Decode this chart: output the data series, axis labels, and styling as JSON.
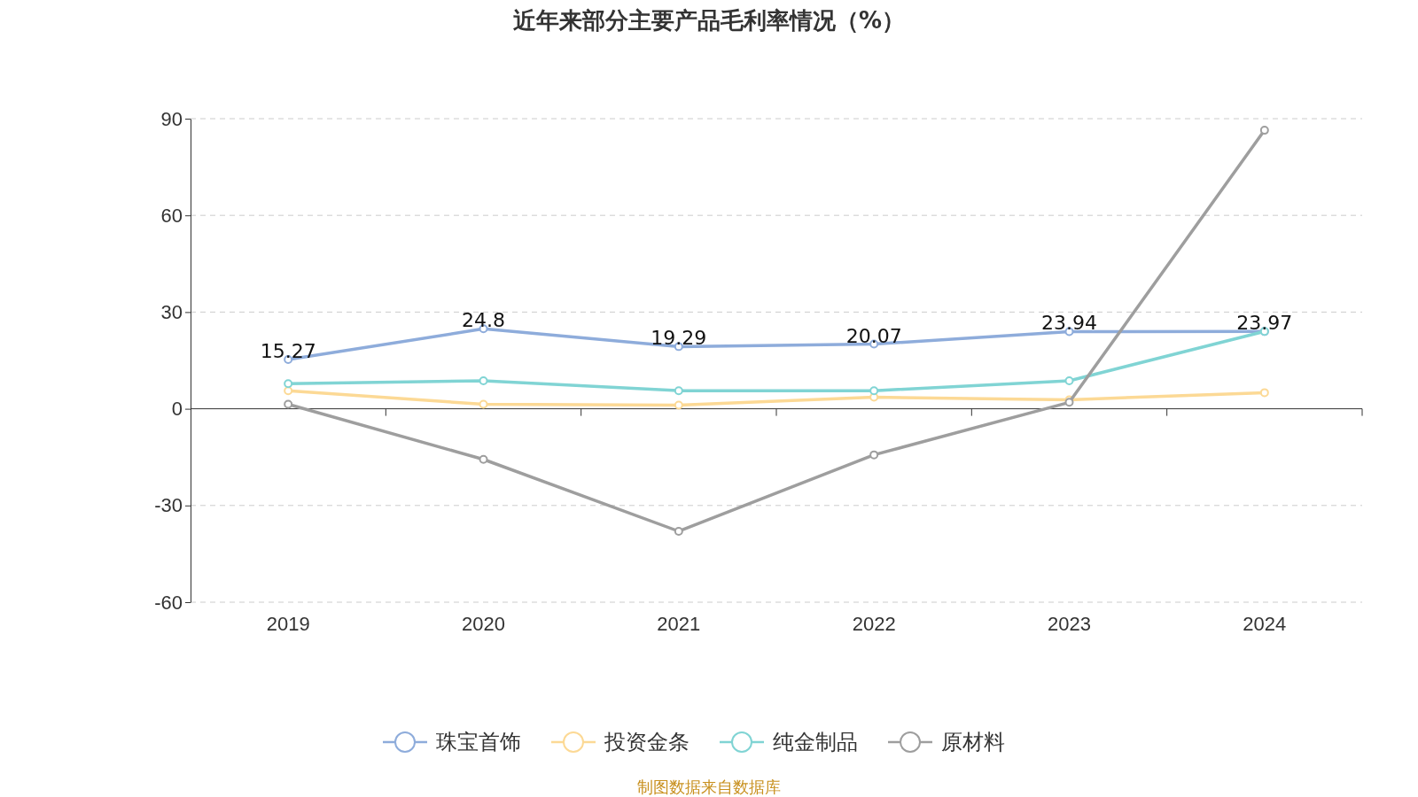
{
  "chart_data": {
    "type": "line",
    "title": "近年来部分主要产品毛利率情况（%）",
    "categories": [
      "2019",
      "2020",
      "2021",
      "2022",
      "2023",
      "2024"
    ],
    "series": [
      {
        "name": "珠宝首饰",
        "color": "#8eacdb",
        "values": [
          15.27,
          24.8,
          19.29,
          20.07,
          23.94,
          23.97
        ],
        "value_labels": [
          "15.27",
          "24.8",
          "19.29",
          "20.07",
          "23.94",
          "23.97"
        ]
      },
      {
        "name": "投资金条",
        "color": "#fcd995",
        "values": [
          5.6,
          1.4,
          1.1,
          3.6,
          2.8,
          5.0
        ]
      },
      {
        "name": "纯金制品",
        "color": "#80d4d4",
        "values": [
          7.8,
          8.7,
          5.6,
          5.6,
          8.7,
          24
        ]
      },
      {
        "name": "原材料",
        "color": "#9e9e9e",
        "values": [
          1.4,
          -15.7,
          -38,
          -14.3,
          2.0,
          86.4
        ]
      }
    ],
    "ylim": [
      -60,
      90
    ],
    "yticks": [
      -60,
      -30,
      0,
      30,
      60,
      90
    ],
    "grid": "y",
    "legend": "bottom",
    "marker": "circle",
    "line_style": "solid",
    "annotations": [
      "制图数据来自数据库"
    ]
  }
}
